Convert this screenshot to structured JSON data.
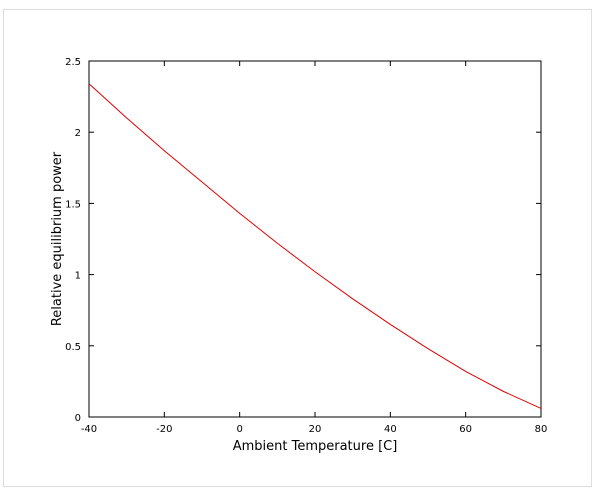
{
  "chart_data": {
    "type": "line",
    "title": "",
    "xlabel": "Ambient Temperature [C]",
    "ylabel": "Relative equilibrium power",
    "xlim": [
      -40,
      80
    ],
    "ylim": [
      0,
      2.5
    ],
    "x_ticks": [
      -40,
      -20,
      0,
      20,
      40,
      60,
      80
    ],
    "y_ticks": [
      0,
      0.5,
      1,
      1.5,
      2,
      2.5
    ],
    "x_tick_labels": [
      "-40",
      "-20",
      "0",
      "20",
      "40",
      "60",
      "80"
    ],
    "y_tick_labels": [
      "0",
      "0.5",
      "1",
      "1.5",
      "2",
      "2.5"
    ],
    "grid": false,
    "legend": "none",
    "series": [
      {
        "color": "#e00000",
        "x": [
          -40,
          -30,
          -20,
          -10,
          0,
          10,
          20,
          30,
          40,
          50,
          60,
          70,
          80
        ],
        "y": [
          2.34,
          2.1,
          1.87,
          1.65,
          1.43,
          1.22,
          1.02,
          0.83,
          0.65,
          0.48,
          0.32,
          0.18,
          0.06
        ]
      }
    ]
  }
}
